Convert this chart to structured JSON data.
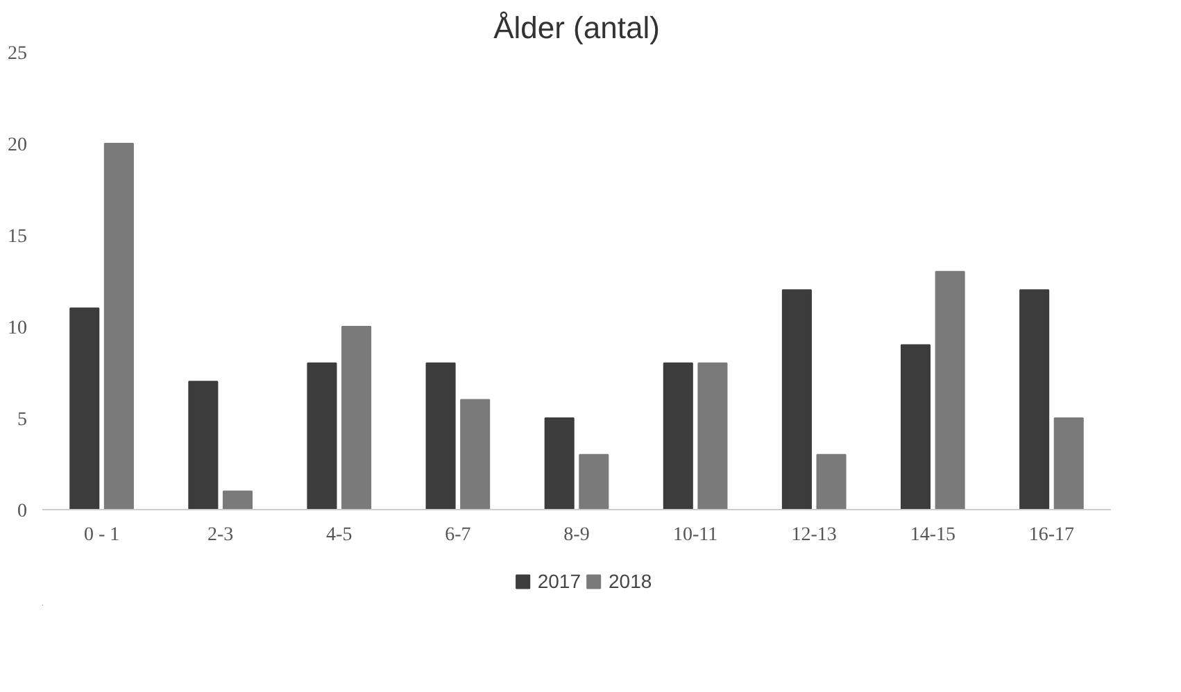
{
  "chart_data": {
    "type": "bar",
    "title": "Ålder (antal)",
    "categories": [
      "0 - 1",
      "2-3",
      "4-5",
      "6-7",
      "8-9",
      "10-11",
      "12-13",
      "14-15",
      "16-17"
    ],
    "series": [
      {
        "name": "2017",
        "color": "#3c3c3c",
        "values": [
          11,
          7,
          8,
          8,
          5,
          8,
          12,
          9,
          12
        ]
      },
      {
        "name": "2018",
        "color": "#7a7a7a",
        "values": [
          20,
          1,
          10,
          6,
          3,
          8,
          3,
          13,
          5
        ]
      }
    ],
    "ylim": [
      0,
      25
    ],
    "yticks": [
      0,
      5,
      10,
      15,
      20,
      25
    ],
    "grid": false,
    "legend": "bottom"
  }
}
